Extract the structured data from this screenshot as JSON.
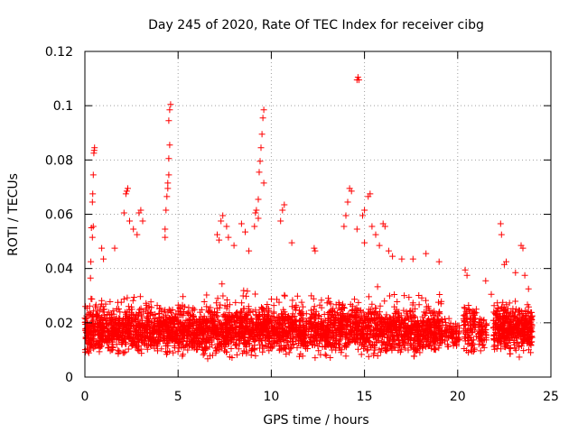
{
  "chart_data": {
    "type": "scatter",
    "title": "Day 245 of 2020, Rate Of TEC Index for receiver cibg",
    "xlabel": "GPS time / hours",
    "ylabel": "ROTI / TECUs",
    "xlim": [
      0,
      25
    ],
    "ylim": [
      0,
      0.12
    ],
    "xticks": [
      0,
      5,
      10,
      15,
      20,
      25
    ],
    "xtick_labels": [
      "0",
      "5",
      "10",
      "15",
      "20",
      "25"
    ],
    "yticks": [
      0,
      0.02,
      0.04,
      0.06,
      0.08,
      0.1,
      0.12
    ],
    "ytick_labels": [
      "0",
      "0.02",
      "0.04",
      "0.06",
      "0.08",
      "0.1",
      "0.12"
    ],
    "grid": true,
    "marker": "+",
    "color": "#ff0000",
    "series": [
      {
        "name": "ROTI",
        "bands": [
          {
            "x": [
              0.0,
              19.2
            ],
            "y_low": 0.006,
            "y_high": 0.028,
            "n": 2600
          },
          {
            "x": [
              0.0,
              19.2
            ],
            "y_low": 0.004,
            "y_high": 0.036,
            "n": 650
          },
          {
            "x": [
              19.3,
              20.1
            ],
            "y_low": 0.008,
            "y_high": 0.024,
            "n": 70
          },
          {
            "x": [
              20.3,
              21.0
            ],
            "y_low": 0.006,
            "y_high": 0.03,
            "n": 90
          },
          {
            "x": [
              21.1,
              21.6
            ],
            "y_low": 0.008,
            "y_high": 0.026,
            "n": 55
          },
          {
            "x": [
              21.9,
              24.0
            ],
            "y_low": 0.006,
            "y_high": 0.03,
            "n": 420
          }
        ],
        "spikes": [
          {
            "x": 0.3,
            "y": 0.0365
          },
          {
            "x": 0.32,
            "y": 0.0425
          },
          {
            "x": 0.35,
            "y": 0.055
          },
          {
            "x": 0.4,
            "y": 0.0645
          },
          {
            "x": 0.42,
            "y": 0.0675
          },
          {
            "x": 0.45,
            "y": 0.0745
          },
          {
            "x": 0.48,
            "y": 0.0825
          },
          {
            "x": 0.5,
            "y": 0.0835
          },
          {
            "x": 0.52,
            "y": 0.0845
          },
          {
            "x": 0.4,
            "y": 0.0515
          },
          {
            "x": 0.45,
            "y": 0.0555
          },
          {
            "x": 0.9,
            "y": 0.0475
          },
          {
            "x": 1.0,
            "y": 0.0435
          },
          {
            "x": 1.6,
            "y": 0.0475
          },
          {
            "x": 2.2,
            "y": 0.0675
          },
          {
            "x": 2.25,
            "y": 0.0685
          },
          {
            "x": 2.3,
            "y": 0.0695
          },
          {
            "x": 2.1,
            "y": 0.0605
          },
          {
            "x": 2.4,
            "y": 0.0575
          },
          {
            "x": 2.6,
            "y": 0.0545
          },
          {
            "x": 2.8,
            "y": 0.0525
          },
          {
            "x": 2.9,
            "y": 0.0605
          },
          {
            "x": 3.0,
            "y": 0.0615
          },
          {
            "x": 3.1,
            "y": 0.0575
          },
          {
            "x": 4.3,
            "y": 0.0545
          },
          {
            "x": 4.35,
            "y": 0.0615
          },
          {
            "x": 4.4,
            "y": 0.0665
          },
          {
            "x": 4.45,
            "y": 0.0715
          },
          {
            "x": 4.5,
            "y": 0.0745
          },
          {
            "x": 4.5,
            "y": 0.0805
          },
          {
            "x": 4.55,
            "y": 0.0855
          },
          {
            "x": 4.5,
            "y": 0.0945
          },
          {
            "x": 4.55,
            "y": 0.0985
          },
          {
            "x": 4.6,
            "y": 0.1005
          },
          {
            "x": 4.45,
            "y": 0.0695
          },
          {
            "x": 4.3,
            "y": 0.0515
          },
          {
            "x": 7.1,
            "y": 0.0525
          },
          {
            "x": 7.2,
            "y": 0.0505
          },
          {
            "x": 7.3,
            "y": 0.0575
          },
          {
            "x": 7.4,
            "y": 0.0595
          },
          {
            "x": 7.6,
            "y": 0.0555
          },
          {
            "x": 7.7,
            "y": 0.0515
          },
          {
            "x": 8.0,
            "y": 0.0485
          },
          {
            "x": 8.4,
            "y": 0.0565
          },
          {
            "x": 8.6,
            "y": 0.0535
          },
          {
            "x": 8.8,
            "y": 0.0465
          },
          {
            "x": 9.1,
            "y": 0.0555
          },
          {
            "x": 9.15,
            "y": 0.0605
          },
          {
            "x": 9.2,
            "y": 0.0615
          },
          {
            "x": 9.3,
            "y": 0.0655
          },
          {
            "x": 9.35,
            "y": 0.0755
          },
          {
            "x": 9.4,
            "y": 0.0795
          },
          {
            "x": 9.45,
            "y": 0.0845
          },
          {
            "x": 9.5,
            "y": 0.0895
          },
          {
            "x": 9.55,
            "y": 0.0955
          },
          {
            "x": 9.6,
            "y": 0.0985
          },
          {
            "x": 9.3,
            "y": 0.0585
          },
          {
            "x": 9.6,
            "y": 0.0715
          },
          {
            "x": 10.5,
            "y": 0.0575
          },
          {
            "x": 10.6,
            "y": 0.0615
          },
          {
            "x": 10.7,
            "y": 0.0635
          },
          {
            "x": 11.1,
            "y": 0.0495
          },
          {
            "x": 12.3,
            "y": 0.0475
          },
          {
            "x": 12.35,
            "y": 0.0465
          },
          {
            "x": 13.9,
            "y": 0.0555
          },
          {
            "x": 14.0,
            "y": 0.0595
          },
          {
            "x": 14.1,
            "y": 0.0645
          },
          {
            "x": 14.2,
            "y": 0.0695
          },
          {
            "x": 14.3,
            "y": 0.0685
          },
          {
            "x": 14.6,
            "y": 0.1095
          },
          {
            "x": 14.65,
            "y": 0.1105
          },
          {
            "x": 14.7,
            "y": 0.1095
          },
          {
            "x": 14.6,
            "y": 0.0545
          },
          {
            "x": 14.9,
            "y": 0.0595
          },
          {
            "x": 15.0,
            "y": 0.0615
          },
          {
            "x": 15.2,
            "y": 0.0665
          },
          {
            "x": 15.3,
            "y": 0.0675
          },
          {
            "x": 15.4,
            "y": 0.0555
          },
          {
            "x": 15.6,
            "y": 0.0525
          },
          {
            "x": 15.0,
            "y": 0.0495
          },
          {
            "x": 15.8,
            "y": 0.0485
          },
          {
            "x": 16.0,
            "y": 0.0565
          },
          {
            "x": 16.1,
            "y": 0.0555
          },
          {
            "x": 16.3,
            "y": 0.0465
          },
          {
            "x": 16.5,
            "y": 0.0445
          },
          {
            "x": 17.0,
            "y": 0.0435
          },
          {
            "x": 17.6,
            "y": 0.0435
          },
          {
            "x": 18.3,
            "y": 0.0455
          },
          {
            "x": 19.0,
            "y": 0.0425
          },
          {
            "x": 20.4,
            "y": 0.0395
          },
          {
            "x": 20.5,
            "y": 0.0375
          },
          {
            "x": 21.5,
            "y": 0.0355
          },
          {
            "x": 21.8,
            "y": 0.0305
          },
          {
            "x": 22.3,
            "y": 0.0565
          },
          {
            "x": 22.35,
            "y": 0.0525
          },
          {
            "x": 22.5,
            "y": 0.0415
          },
          {
            "x": 22.6,
            "y": 0.0425
          },
          {
            "x": 23.1,
            "y": 0.0385
          },
          {
            "x": 23.4,
            "y": 0.0485
          },
          {
            "x": 23.5,
            "y": 0.0475
          },
          {
            "x": 23.6,
            "y": 0.0375
          },
          {
            "x": 23.8,
            "y": 0.0325
          }
        ]
      }
    ]
  }
}
